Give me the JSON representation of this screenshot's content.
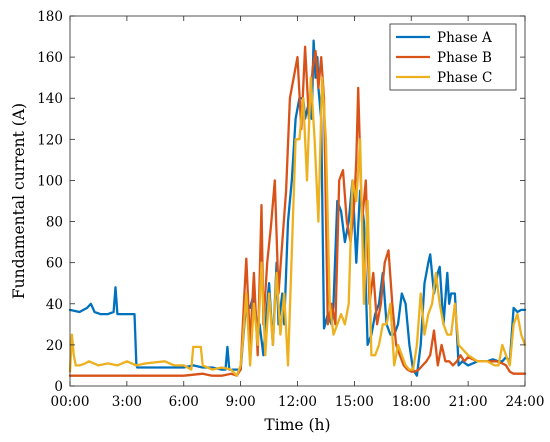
{
  "chart_data": {
    "type": "line",
    "title": "",
    "xlabel": "Time (h)",
    "ylabel": "Fundamental current (A)",
    "xlim": [
      0,
      24
    ],
    "ylim": [
      0,
      180
    ],
    "xticks": [
      0,
      3,
      6,
      9,
      12,
      15,
      18,
      21,
      24
    ],
    "xtick_labels": [
      "00:00",
      "3:00",
      "6:00",
      "9:00",
      "12:00",
      "15:00",
      "18:00",
      "21:00",
      "24:00"
    ],
    "yticks": [
      0,
      20,
      40,
      60,
      80,
      100,
      120,
      140,
      160,
      180
    ],
    "ytick_labels": [
      "0",
      "20",
      "40",
      "60",
      "80",
      "100",
      "120",
      "140",
      "160",
      "180"
    ],
    "grid": false,
    "legend_position": "top-right",
    "series": [
      {
        "name": "Phase A",
        "color": "#0072BD",
        "x": [
          0,
          0.5,
          0.9,
          1.1,
          1.3,
          1.6,
          2.0,
          2.3,
          2.4,
          2.5,
          3.0,
          3.4,
          3.5,
          3.55,
          5.0,
          6.0,
          6.5,
          7.0,
          7.5,
          8.0,
          8.2,
          8.3,
          8.4,
          8.6,
          9.0,
          9.2,
          9.3,
          9.5,
          9.7,
          9.9,
          10.0,
          10.2,
          10.4,
          10.5,
          10.7,
          10.9,
          11.0,
          11.2,
          11.3,
          11.5,
          11.7,
          11.9,
          12.1,
          12.3,
          12.4,
          12.6,
          12.75,
          12.85,
          12.95,
          13.05,
          13.1,
          13.25,
          13.4,
          13.6,
          13.8,
          13.9,
          14.1,
          14.3,
          14.5,
          14.7,
          14.9,
          15.0,
          15.1,
          15.3,
          15.5,
          15.7,
          15.9,
          16.1,
          16.3,
          16.5,
          16.7,
          16.9,
          17.1,
          17.3,
          17.5,
          17.7,
          17.9,
          18.1,
          18.3,
          18.5,
          18.7,
          18.9,
          19.0,
          19.2,
          19.4,
          19.5,
          19.7,
          19.9,
          20.0,
          20.1,
          20.3,
          20.5,
          20.7,
          21.0,
          21.5,
          22.0,
          22.3,
          22.6,
          22.8,
          23.0,
          23.2,
          23.4,
          23.6,
          23.8,
          24.0
        ],
        "values": [
          37,
          36,
          38,
          40,
          36,
          35,
          35,
          36,
          48,
          35,
          35,
          35,
          10,
          9,
          9,
          9,
          10,
          9,
          9,
          8,
          8,
          19,
          8,
          8,
          8,
          30,
          40,
          38,
          45,
          25,
          30,
          15,
          40,
          50,
          20,
          60,
          30,
          45,
          30,
          80,
          100,
          130,
          140,
          140,
          130,
          138,
          130,
          168,
          150,
          160,
          145,
          130,
          28,
          35,
          30,
          40,
          90,
          85,
          70,
          80,
          100,
          80,
          60,
          95,
          80,
          20,
          25,
          35,
          40,
          55,
          30,
          25,
          25,
          30,
          45,
          40,
          20,
          8,
          5,
          20,
          50,
          60,
          64,
          45,
          55,
          58,
          30,
          55,
          40,
          45,
          45,
          10,
          12,
          10,
          12,
          12,
          13,
          12,
          12,
          14,
          12,
          38,
          36,
          37,
          37
        ]
      },
      {
        "name": "Phase B",
        "color": "#D95319",
        "x": [
          0,
          1,
          2,
          3,
          4,
          5,
          6,
          7,
          7.5,
          8.0,
          8.5,
          8.8,
          9.0,
          9.2,
          9.3,
          9.5,
          9.7,
          9.9,
          10.1,
          10.2,
          10.4,
          10.6,
          10.8,
          11.0,
          11.2,
          11.4,
          11.6,
          11.8,
          12.0,
          12.2,
          12.4,
          12.6,
          12.8,
          12.95,
          13.1,
          13.25,
          13.4,
          13.6,
          13.8,
          14.0,
          14.2,
          14.4,
          14.6,
          14.8,
          15.0,
          15.1,
          15.2,
          15.4,
          15.6,
          15.8,
          16.0,
          16.2,
          16.4,
          16.6,
          16.8,
          17.0,
          17.2,
          17.4,
          17.6,
          17.8,
          18.0,
          18.2,
          18.4,
          18.6,
          18.8,
          19.0,
          19.2,
          19.4,
          19.6,
          19.8,
          20.0,
          20.2,
          20.4,
          20.6,
          20.8,
          21.0,
          21.5,
          22.0,
          22.5,
          22.8,
          23.0,
          23.2,
          23.4,
          23.6,
          23.8,
          24.0
        ],
        "values": [
          5,
          5,
          5,
          5,
          5,
          5,
          5,
          6,
          5,
          5,
          6,
          5,
          8,
          45,
          62,
          20,
          55,
          15,
          88,
          30,
          60,
          78,
          100,
          45,
          70,
          95,
          140,
          150,
          160,
          125,
          165,
          130,
          155,
          163,
          145,
          160,
          140,
          30,
          40,
          30,
          100,
          105,
          80,
          70,
          90,
          110,
          145,
          80,
          100,
          40,
          55,
          30,
          40,
          60,
          66,
          40,
          20,
          15,
          10,
          8,
          7,
          7,
          8,
          10,
          12,
          15,
          27,
          10,
          20,
          12,
          12,
          10,
          12,
          15,
          12,
          14,
          12,
          12,
          12,
          11,
          10,
          7,
          6,
          6,
          6,
          6
        ]
      },
      {
        "name": "Phase C",
        "color": "#EDB120",
        "x": [
          0,
          0.1,
          0.2,
          0.3,
          0.5,
          0.8,
          1.0,
          1.5,
          2.0,
          2.5,
          3.0,
          3.5,
          4.0,
          5.0,
          5.5,
          6.0,
          6.4,
          6.5,
          6.9,
          7.0,
          7.5,
          8.0,
          8.5,
          8.8,
          9.0,
          9.1,
          9.3,
          9.5,
          9.7,
          9.9,
          10.1,
          10.3,
          10.5,
          10.7,
          10.9,
          11.1,
          11.3,
          11.5,
          11.7,
          11.9,
          12.1,
          12.3,
          12.5,
          12.7,
          12.9,
          13.1,
          13.3,
          13.5,
          13.7,
          13.9,
          14.1,
          14.3,
          14.5,
          14.7,
          14.9,
          15.1,
          15.3,
          15.5,
          15.7,
          15.9,
          16.1,
          16.3,
          16.5,
          16.7,
          16.9,
          17.1,
          17.3,
          17.5,
          17.7,
          17.9,
          18.1,
          18.3,
          18.5,
          18.7,
          18.9,
          19.1,
          19.3,
          19.5,
          19.7,
          19.9,
          20.1,
          20.3,
          20.5,
          21.0,
          21.5,
          22.0,
          22.4,
          22.6,
          22.8,
          23.0,
          23.2,
          23.4,
          23.6,
          23.8,
          24.0
        ],
        "values": [
          7,
          25,
          15,
          10,
          10,
          11,
          12,
          10,
          11,
          10,
          12,
          10,
          11,
          12,
          10,
          10,
          8,
          19,
          19,
          10,
          8,
          9,
          8,
          5,
          10,
          20,
          45,
          10,
          40,
          20,
          60,
          15,
          45,
          20,
          55,
          25,
          45,
          10,
          65,
          120,
          120,
          140,
          100,
          150,
          120,
          80,
          150,
          120,
          40,
          25,
          30,
          35,
          30,
          40,
          100,
          90,
          120,
          40,
          90,
          15,
          15,
          20,
          30,
          30,
          40,
          10,
          20,
          15,
          10,
          8,
          8,
          20,
          45,
          25,
          35,
          40,
          55,
          40,
          30,
          25,
          25,
          40,
          20,
          15,
          12,
          12,
          10,
          10,
          20,
          15,
          10,
          30,
          35,
          25,
          20
        ]
      }
    ]
  }
}
